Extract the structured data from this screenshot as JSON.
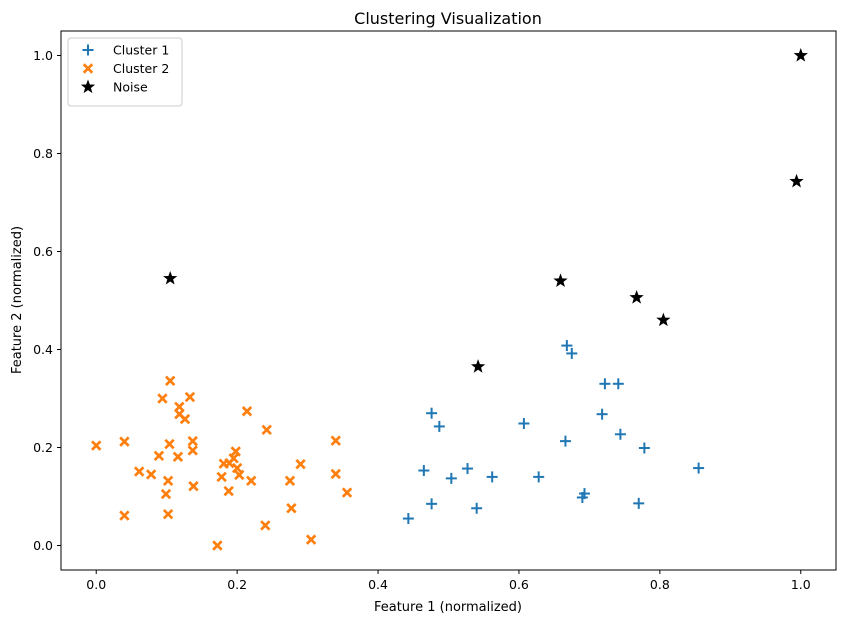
{
  "chart_data": {
    "type": "scatter",
    "title": "Clustering Visualization",
    "xlabel": "Feature 1 (normalized)",
    "ylabel": "Feature 2 (normalized)",
    "xlim": [
      -0.05,
      1.05
    ],
    "ylim": [
      -0.05,
      1.05
    ],
    "xticks": [
      0.0,
      0.2,
      0.4,
      0.6,
      0.8,
      1.0
    ],
    "xtick_labels": [
      "0.0",
      "0.2",
      "0.4",
      "0.6",
      "0.8",
      "1.0"
    ],
    "yticks": [
      0.0,
      0.2,
      0.4,
      0.6,
      0.8,
      1.0
    ],
    "ytick_labels": [
      "0.0",
      "0.2",
      "0.4",
      "0.6",
      "0.8",
      "1.0"
    ],
    "grid": false,
    "legend_position": "top-left",
    "series": [
      {
        "name": "Cluster 1",
        "marker": "plus",
        "color": "#1f77b4",
        "points": [
          [
            0.443,
            0.055
          ],
          [
            0.465,
            0.153
          ],
          [
            0.476,
            0.27
          ],
          [
            0.476,
            0.085
          ],
          [
            0.487,
            0.243
          ],
          [
            0.504,
            0.137
          ],
          [
            0.527,
            0.157
          ],
          [
            0.54,
            0.076
          ],
          [
            0.562,
            0.14
          ],
          [
            0.607,
            0.249
          ],
          [
            0.628,
            0.14
          ],
          [
            0.666,
            0.213
          ],
          [
            0.668,
            0.408
          ],
          [
            0.675,
            0.392
          ],
          [
            0.69,
            0.098
          ],
          [
            0.693,
            0.106
          ],
          [
            0.718,
            0.268
          ],
          [
            0.722,
            0.33
          ],
          [
            0.741,
            0.33
          ],
          [
            0.744,
            0.227
          ],
          [
            0.77,
            0.086
          ],
          [
            0.778,
            0.199
          ],
          [
            0.855,
            0.158
          ]
        ]
      },
      {
        "name": "Cluster 2",
        "marker": "x-filled",
        "color": "#ff7f0e",
        "points": [
          [
            0.0,
            0.204
          ],
          [
            0.04,
            0.061
          ],
          [
            0.04,
            0.212
          ],
          [
            0.061,
            0.151
          ],
          [
            0.078,
            0.145
          ],
          [
            0.089,
            0.183
          ],
          [
            0.094,
            0.3
          ],
          [
            0.099,
            0.105
          ],
          [
            0.102,
            0.064
          ],
          [
            0.102,
            0.132
          ],
          [
            0.104,
            0.207
          ],
          [
            0.105,
            0.336
          ],
          [
            0.116,
            0.181
          ],
          [
            0.118,
            0.283
          ],
          [
            0.118,
            0.268
          ],
          [
            0.126,
            0.258
          ],
          [
            0.133,
            0.303
          ],
          [
            0.137,
            0.194
          ],
          [
            0.137,
            0.213
          ],
          [
            0.138,
            0.121
          ],
          [
            0.172,
            0.0
          ],
          [
            0.178,
            0.14
          ],
          [
            0.181,
            0.167
          ],
          [
            0.188,
            0.111
          ],
          [
            0.189,
            0.168
          ],
          [
            0.195,
            0.178
          ],
          [
            0.198,
            0.192
          ],
          [
            0.2,
            0.158
          ],
          [
            0.203,
            0.144
          ],
          [
            0.214,
            0.274
          ],
          [
            0.22,
            0.132
          ],
          [
            0.24,
            0.041
          ],
          [
            0.242,
            0.236
          ],
          [
            0.275,
            0.132
          ],
          [
            0.277,
            0.076
          ],
          [
            0.29,
            0.166
          ],
          [
            0.305,
            0.012
          ],
          [
            0.34,
            0.214
          ],
          [
            0.34,
            0.146
          ],
          [
            0.356,
            0.108
          ]
        ]
      },
      {
        "name": "Noise",
        "marker": "star",
        "color": "#000000",
        "points": [
          [
            0.105,
            0.545
          ],
          [
            0.542,
            0.365
          ],
          [
            0.659,
            0.54
          ],
          [
            0.767,
            0.506
          ],
          [
            0.805,
            0.46
          ],
          [
            0.994,
            0.743
          ],
          [
            1.0,
            1.0
          ]
        ]
      }
    ]
  }
}
